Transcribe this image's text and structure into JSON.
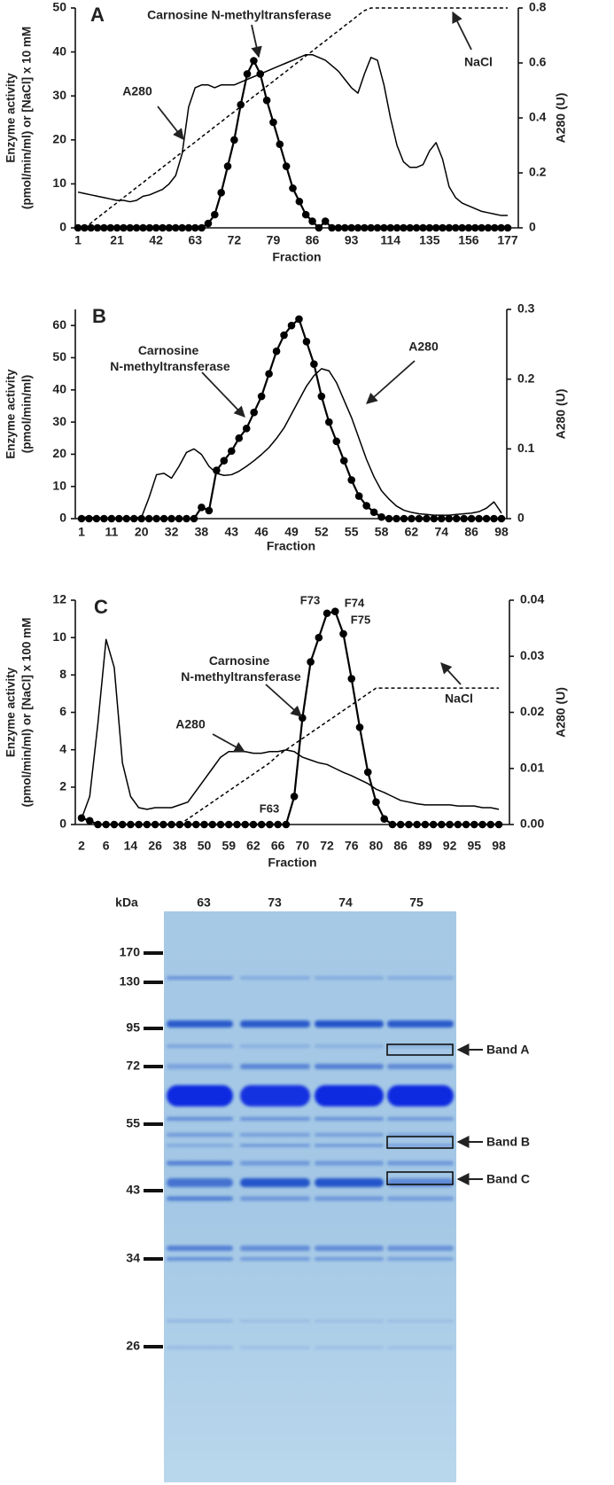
{
  "chart_data": [
    {
      "type": "line",
      "panel": "A",
      "x_label": "Fraction",
      "y_label": [
        "Enzyme activity",
        "(pmol/min/ml) or [NaCl] x 10 mM"
      ],
      "y2_label": "A280 (U)",
      "categories": [
        "1",
        null,
        null,
        null,
        null,
        null,
        "21",
        null,
        null,
        null,
        null,
        null,
        "42",
        null,
        null,
        null,
        null,
        null,
        "63",
        null,
        null,
        null,
        null,
        null,
        "72",
        null,
        null,
        null,
        null,
        null,
        "79",
        null,
        null,
        null,
        null,
        null,
        "86",
        null,
        null,
        null,
        null,
        null,
        "93",
        null,
        null,
        null,
        null,
        null,
        "114",
        null,
        null,
        null,
        null,
        null,
        "135",
        null,
        null,
        null,
        null,
        null,
        "156",
        null,
        null,
        null,
        null,
        null,
        "177"
      ],
      "series": [
        {
          "name": "Carnosine N-methyltransferase",
          "color": "#000000",
          "markers": true,
          "values": [
            0,
            0,
            0,
            0,
            0,
            0,
            0,
            0,
            0,
            0,
            0,
            0,
            0,
            0,
            0,
            0,
            0,
            0,
            0,
            0,
            1,
            3,
            8,
            14,
            20,
            28,
            35,
            38,
            35,
            29,
            24,
            19,
            14,
            9,
            6,
            3,
            1.5,
            0,
            1.5,
            0,
            0,
            0,
            0,
            0,
            0,
            0,
            0,
            0,
            0,
            0,
            0,
            0,
            0,
            0,
            0,
            0,
            0,
            0,
            0,
            0,
            0,
            0,
            0,
            0,
            0,
            0,
            0
          ]
        },
        {
          "name": "A280",
          "color": "#000000",
          "axis": "y2",
          "values": [
            0.13,
            0.125,
            0.12,
            0.115,
            0.11,
            0.105,
            0.1,
            0.1,
            0.095,
            0.1,
            0.115,
            0.12,
            0.13,
            0.14,
            0.16,
            0.19,
            0.27,
            0.44,
            0.51,
            0.52,
            0.52,
            0.51,
            0.52,
            0.52,
            0.52,
            0.53,
            0.54,
            0.55,
            0.56,
            0.57,
            0.58,
            0.59,
            0.6,
            0.61,
            0.62,
            0.63,
            0.63,
            0.62,
            0.61,
            0.59,
            0.57,
            0.54,
            0.51,
            0.49,
            0.56,
            0.62,
            0.61,
            0.52,
            0.4,
            0.3,
            0.24,
            0.22,
            0.22,
            0.23,
            0.28,
            0.31,
            0.25,
            0.15,
            0.11,
            0.09,
            0.08,
            0.07,
            0.06,
            0.055,
            0.05,
            0.045,
            0.045
          ]
        },
        {
          "name": "NaCl",
          "color": "#000000",
          "line_style": "dashed",
          "values": [
            null,
            0,
            1.1,
            2.3,
            3.4,
            4.6,
            5.7,
            6.9,
            8.0,
            9.2,
            10.3,
            11.5,
            12.6,
            13.8,
            14.9,
            16.1,
            17.2,
            18.4,
            19.5,
            20.7,
            21.8,
            23.0,
            24.1,
            25.3,
            26.4,
            27.6,
            28.7,
            29.9,
            31.0,
            32.2,
            33.3,
            34.5,
            35.6,
            36.8,
            37.9,
            39.1,
            40.2,
            41.4,
            42.5,
            43.7,
            44.8,
            46.0,
            47.1,
            48.3,
            49.4,
            50,
            50,
            50,
            50,
            50,
            50,
            50,
            50,
            50,
            50,
            50,
            50,
            50,
            50,
            50,
            50,
            50,
            50,
            50,
            50,
            50,
            50
          ]
        }
      ],
      "ylim": [
        0,
        50
      ],
      "yticks": [
        0,
        10,
        20,
        30,
        40,
        50
      ],
      "y2lim": [
        0,
        0.8
      ],
      "y2ticks": [
        0,
        0.2,
        0.4,
        0.6,
        0.8
      ]
    },
    {
      "type": "line",
      "panel": "B",
      "x_label": "Fraction",
      "y_label": [
        "Enzyme activity",
        "(pmol/min/ml)"
      ],
      "y2_label": "A280 (U)",
      "categories": [
        "1",
        null,
        null,
        null,
        "11",
        null,
        null,
        null,
        "20",
        null,
        null,
        null,
        "32",
        null,
        null,
        null,
        "38",
        null,
        null,
        null,
        "43",
        null,
        null,
        null,
        "46",
        null,
        null,
        null,
        "49",
        null,
        null,
        null,
        "52",
        null,
        null,
        null,
        "55",
        null,
        null,
        null,
        "58",
        null,
        null,
        null,
        "62",
        null,
        null,
        null,
        "74",
        null,
        null,
        null,
        "86",
        null,
        null,
        null,
        "98"
      ],
      "series": [
        {
          "name": "Carnosine N-methyltransferase",
          "color": "#000000",
          "markers": true,
          "values": [
            0,
            0,
            0,
            0,
            0,
            0,
            0,
            0,
            0,
            0,
            0,
            0,
            0,
            0,
            0,
            0,
            3.5,
            2.5,
            15,
            18,
            21,
            25,
            28,
            33,
            38,
            45,
            52,
            57,
            60,
            62,
            55,
            48,
            38,
            30,
            24,
            18,
            12,
            7,
            4,
            2,
            0.5,
            0,
            0,
            0,
            0,
            0,
            0,
            0,
            0,
            0,
            0,
            0,
            0,
            0,
            0,
            0,
            0
          ]
        },
        {
          "name": "A280",
          "color": "#000000",
          "axis": "y2",
          "values": [
            0.002,
            0.002,
            0.001,
            0.001,
            0.001,
            0.001,
            0.001,
            0.001,
            0.002,
            0.03,
            0.063,
            0.065,
            0.058,
            0.075,
            0.095,
            0.1,
            0.092,
            0.075,
            0.065,
            0.062,
            0.063,
            0.068,
            0.075,
            0.083,
            0.092,
            0.102,
            0.115,
            0.13,
            0.15,
            0.17,
            0.19,
            0.205,
            0.215,
            0.212,
            0.195,
            0.17,
            0.145,
            0.115,
            0.085,
            0.06,
            0.04,
            0.028,
            0.018,
            0.012,
            0.009,
            0.007,
            0.006,
            0.005,
            0.005,
            0.005,
            0.006,
            0.007,
            0.008,
            0.01,
            0.015,
            0.024,
            0.008
          ]
        }
      ],
      "ylim": [
        0,
        65
      ],
      "yticks": [
        0,
        10,
        20,
        30,
        40,
        50,
        60
      ],
      "y2lim": [
        0,
        0.3
      ],
      "y2ticks": [
        0,
        0.1,
        0.2,
        0.3
      ]
    },
    {
      "type": "line",
      "panel": "C",
      "x_label": "Fraction",
      "y_label": [
        "Enzyme activity",
        "(pmol/min/ml) or [NaCl] x 100 mM"
      ],
      "y2_label": "A280 (U)",
      "categories": [
        "2",
        null,
        null,
        "6",
        null,
        null,
        "14",
        null,
        null,
        "26",
        null,
        null,
        "38",
        null,
        null,
        "50",
        null,
        null,
        "59",
        null,
        null,
        "62",
        null,
        null,
        "66",
        null,
        null,
        "70",
        null,
        null,
        "72",
        null,
        null,
        "76",
        null,
        null,
        "80",
        null,
        null,
        "86",
        null,
        null,
        "89",
        null,
        null,
        "92",
        null,
        null,
        "95",
        null,
        null,
        "98"
      ],
      "series": [
        {
          "name": "Carnosine N-methyltransferase",
          "color": "#000000",
          "markers": true,
          "values": [
            0.35,
            0.2,
            0,
            0,
            0,
            0,
            0,
            0,
            0,
            0,
            0,
            0,
            0,
            0,
            0,
            0,
            0,
            0,
            0,
            0,
            0,
            0,
            0,
            0,
            0,
            0,
            1.5,
            5.7,
            8.7,
            10.0,
            11.3,
            11.4,
            10.2,
            7.8,
            5.2,
            2.8,
            1.2,
            0.3,
            0,
            0,
            0,
            0,
            0,
            0,
            0,
            0,
            0,
            0,
            0,
            0,
            0,
            0
          ]
        },
        {
          "name": "A280",
          "color": "#000000",
          "axis": "y2",
          "values": [
            0.001,
            0.005,
            0.018,
            0.033,
            0.028,
            0.011,
            0.005,
            0.003,
            0.0027,
            0.003,
            0.003,
            0.003,
            0.0035,
            0.004,
            0.006,
            0.008,
            0.01,
            0.012,
            0.013,
            0.013,
            0.013,
            0.0127,
            0.0127,
            0.013,
            0.013,
            0.0133,
            0.013,
            0.012,
            0.0115,
            0.011,
            0.0107,
            0.01,
            0.0093,
            0.0087,
            0.008,
            0.0073,
            0.0063,
            0.0057,
            0.005,
            0.0043,
            0.004,
            0.0037,
            0.0035,
            0.0035,
            0.0035,
            0.0035,
            0.0033,
            0.0033,
            0.0033,
            0.003,
            0.003,
            0.0027
          ]
        },
        {
          "name": "NaCl",
          "color": "#000000",
          "line_style": "dashed",
          "values": [
            null,
            null,
            null,
            null,
            null,
            null,
            null,
            null,
            null,
            null,
            null,
            null,
            0,
            0.3,
            0.6,
            0.9,
            1.2,
            1.5,
            1.8,
            2.1,
            2.4,
            2.7,
            3.0,
            3.3,
            3.7,
            4.0,
            4.3,
            4.6,
            4.9,
            5.2,
            5.5,
            5.8,
            6.1,
            6.4,
            6.7,
            7.0,
            7.3,
            7.3,
            7.3,
            7.3,
            7.3,
            7.3,
            7.3,
            7.3,
            7.3,
            7.3,
            7.3,
            7.3,
            7.3,
            7.3,
            7.3,
            7.3
          ]
        }
      ],
      "annotations": [
        "F63",
        "F73",
        "F74",
        "F75"
      ],
      "ylim": [
        0,
        12
      ],
      "yticks": [
        0,
        2,
        4,
        6,
        8,
        10,
        12
      ],
      "y2lim": [
        0,
        0.04
      ],
      "y2ticks": [
        {
          "value": 0,
          "label": "0.00"
        },
        {
          "value": 0.01,
          "label": "0.01"
        },
        {
          "value": 0.02,
          "label": "0.02"
        },
        {
          "value": 0.03,
          "label": "0.03"
        },
        {
          "value": 0.04,
          "label": "0.04"
        }
      ]
    }
  ],
  "gel": {
    "unit_label": "kDa",
    "lanes": [
      "63",
      "73",
      "74",
      "75"
    ],
    "markers": [
      170,
      130,
      95,
      72,
      55,
      43,
      34,
      26
    ],
    "bands": [
      "Band A",
      "Band B",
      "Band C"
    ]
  }
}
